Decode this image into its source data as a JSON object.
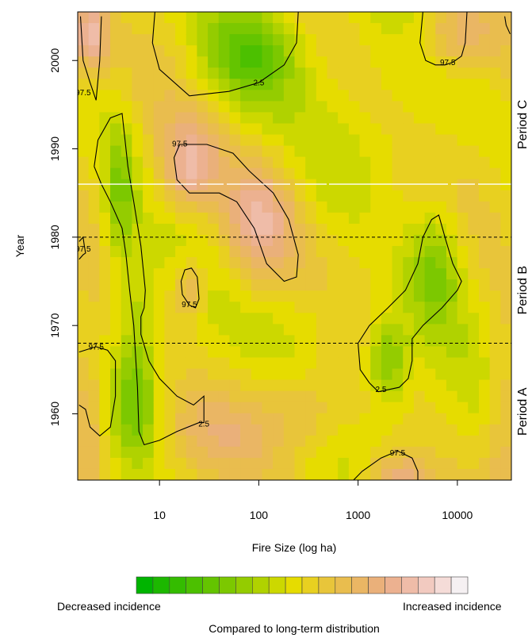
{
  "chart_data": {
    "type": "heatmap",
    "xlabel": "Fire Size (log ha)",
    "ylabel": "Year",
    "x_scale": "log",
    "x_range": [
      1.5,
      35000
    ],
    "y_range": [
      1952.5,
      2005.5
    ],
    "x_ticks": [
      {
        "value": 10,
        "label": "10"
      },
      {
        "value": 100,
        "label": "100"
      },
      {
        "value": 1000,
        "label": "1000"
      },
      {
        "value": 10000,
        "label": "10000"
      }
    ],
    "y_ticks": [
      {
        "value": 1960,
        "label": "1960"
      },
      {
        "value": 1970,
        "label": "1970"
      },
      {
        "value": 1980,
        "label": "1980"
      },
      {
        "value": 1990,
        "label": "1990"
      },
      {
        "value": 2000,
        "label": "2000"
      }
    ],
    "period_boundaries": [
      1968,
      1980
    ],
    "white_line_year": 1986,
    "periods": [
      {
        "label": "Period A",
        "from": 1952.5,
        "to": 1968
      },
      {
        "label": "Period B",
        "from": 1968,
        "to": 1980
      },
      {
        "label": "Period C",
        "from": 1980,
        "to": 2005.5
      }
    ],
    "contour_levels": [
      "2.5",
      "97.5"
    ],
    "contour_labels": [
      {
        "text": "2.5",
        "x": 100,
        "y": 1997.5
      },
      {
        "text": "97.5",
        "x": 1.7,
        "y": 1996.4
      },
      {
        "text": "97.5",
        "x": 16,
        "y": 1990.6
      },
      {
        "text": "97.5",
        "x": 1.7,
        "y": 1978.7
      },
      {
        "text": "97.5",
        "x": 20,
        "y": 1972.4
      },
      {
        "text": "97.5",
        "x": 2.3,
        "y": 1967.6
      },
      {
        "text": "2.5",
        "x": 28,
        "y": 1958.9
      },
      {
        "text": "2.5",
        "x": 1700,
        "y": 1962.8
      },
      {
        "text": "97.5",
        "x": 2500,
        "y": 1955.6
      },
      {
        "text": "97.5",
        "x": 8000,
        "y": 1999.8
      }
    ],
    "hotspots": [
      {
        "x": 2.0,
        "y": 2003,
        "sx": 0.12,
        "sy": 3,
        "v": 0.85
      },
      {
        "x": 1.8,
        "y": 1960,
        "sx": 0.15,
        "sy": 6,
        "v": 0.72
      },
      {
        "x": 20,
        "y": 1988,
        "sx": 0.2,
        "sy": 3.5,
        "v": 0.78
      },
      {
        "x": 100,
        "y": 1982,
        "sx": 0.28,
        "sy": 5,
        "v": 0.8
      },
      {
        "x": 20,
        "y": 1974,
        "sx": 0.12,
        "sy": 2.5,
        "v": 0.7
      },
      {
        "x": 2500,
        "y": 1952,
        "sx": 0.25,
        "sy": 2.5,
        "v": 0.8
      },
      {
        "x": 10000,
        "y": 2003,
        "sx": 0.3,
        "sy": 3,
        "v": 0.72
      },
      {
        "x": 40,
        "y": 1958,
        "sx": 0.4,
        "sy": 3,
        "v": 0.62
      },
      {
        "x": 300,
        "y": 1960,
        "sx": 0.3,
        "sy": 3,
        "v": 0.6
      },
      {
        "x": 80,
        "y": 2001,
        "sx": 0.35,
        "sy": 4,
        "v": 0.2
      },
      {
        "x": 4,
        "y": 1985,
        "sx": 0.12,
        "sy": 6,
        "v": 0.28
      },
      {
        "x": 6,
        "y": 1962,
        "sx": 0.15,
        "sy": 5,
        "v": 0.3
      },
      {
        "x": 2000,
        "y": 1966,
        "sx": 0.15,
        "sy": 3.5,
        "v": 0.25
      },
      {
        "x": 6000,
        "y": 1977,
        "sx": 0.2,
        "sy": 5,
        "v": 0.28
      },
      {
        "x": 6,
        "y": 1972,
        "sx": 0.1,
        "sy": 4,
        "v": 0.4
      },
      {
        "x": 300,
        "y": 1970,
        "sx": 0.4,
        "sy": 4,
        "v": 0.42
      },
      {
        "x": 30000,
        "y": 1960,
        "sx": 0.15,
        "sy": 8,
        "v": 0.65
      },
      {
        "x": 3000,
        "y": 1990,
        "sx": 0.4,
        "sy": 4,
        "v": 0.45
      }
    ],
    "contours": [
      {
        "level": "97.5",
        "points": [
          [
            1.6,
            2005
          ],
          [
            1.7,
            2000
          ],
          [
            2.0,
            1997.5
          ],
          [
            2.3,
            1995.5
          ],
          [
            2.5,
            2000
          ],
          [
            2.6,
            2005
          ]
        ]
      },
      {
        "level": "2.5",
        "points": [
          [
            9,
            2005.5
          ],
          [
            8.5,
            2002
          ],
          [
            10,
            1999
          ],
          [
            20,
            1996
          ],
          [
            50,
            1996.5
          ],
          [
            100,
            1997.5
          ],
          [
            180,
            1999.5
          ],
          [
            240,
            2002
          ],
          [
            250,
            2005.5
          ]
        ]
      },
      {
        "level": "2.5",
        "points": [
          [
            2.2,
            1988
          ],
          [
            2.4,
            1991
          ],
          [
            3.2,
            1993.5
          ],
          [
            4.2,
            1994
          ],
          [
            4.5,
            1991
          ],
          [
            4.8,
            1988
          ],
          [
            5.5,
            1984
          ],
          [
            6.5,
            1979
          ],
          [
            7.2,
            1974
          ],
          [
            7.0,
            1972
          ],
          [
            6.5,
            1971
          ],
          [
            6.5,
            1969
          ],
          [
            7.8,
            1966
          ],
          [
            10,
            1964
          ],
          [
            15,
            1962
          ],
          [
            22,
            1961
          ],
          [
            28,
            1962
          ],
          [
            28,
            1959
          ],
          [
            25,
            1959
          ],
          [
            15,
            1958
          ],
          [
            10,
            1957
          ],
          [
            7,
            1956.5
          ],
          [
            6.2,
            1958
          ],
          [
            6.0,
            1963
          ],
          [
            5.5,
            1970
          ],
          [
            5.0,
            1974
          ],
          [
            4.6,
            1978
          ],
          [
            4.2,
            1981
          ],
          [
            3.2,
            1984
          ],
          [
            2.6,
            1986
          ],
          [
            2.2,
            1988
          ]
        ]
      },
      {
        "level": "97.5",
        "points": [
          [
            16,
            1990.5
          ],
          [
            30,
            1990.5
          ],
          [
            55,
            1989.5
          ],
          [
            80,
            1987.5
          ],
          [
            140,
            1985
          ],
          [
            200,
            1982
          ],
          [
            250,
            1978
          ],
          [
            240,
            1975.5
          ],
          [
            180,
            1975
          ],
          [
            120,
            1977
          ],
          [
            90,
            1981
          ],
          [
            60,
            1984
          ],
          [
            40,
            1985
          ],
          [
            20,
            1985
          ],
          [
            15,
            1986.5
          ],
          [
            14,
            1989
          ],
          [
            16,
            1990.5
          ]
        ]
      },
      {
        "level": "97.5",
        "points": [
          [
            20,
            1972.3
          ],
          [
            17,
            1973.5
          ],
          [
            16.5,
            1975
          ],
          [
            18,
            1976.3
          ],
          [
            21,
            1976.5
          ],
          [
            24,
            1975.5
          ],
          [
            25,
            1973
          ],
          [
            23,
            1972
          ],
          [
            20,
            1972.3
          ]
        ]
      },
      {
        "level": "97.5",
        "points": [
          [
            1.55,
            1979.5
          ],
          [
            1.7,
            1980
          ],
          [
            1.75,
            1979
          ],
          [
            1.8,
            1978.2
          ],
          [
            1.7,
            1978
          ],
          [
            1.55,
            1977.5
          ]
        ]
      },
      {
        "level": "97.5",
        "points": [
          [
            1.55,
            1967
          ],
          [
            2.3,
            1967.6
          ],
          [
            3.0,
            1967.2
          ],
          [
            3.6,
            1966
          ],
          [
            3.6,
            1962
          ],
          [
            3.2,
            1958.5
          ],
          [
            2.5,
            1957.5
          ],
          [
            2.0,
            1958.5
          ],
          [
            1.8,
            1960.5
          ],
          [
            1.55,
            1961
          ]
        ]
      },
      {
        "level": "2.5",
        "points": [
          [
            1600,
            1962.5
          ],
          [
            1300,
            1963.5
          ],
          [
            1050,
            1965
          ],
          [
            1000,
            1968
          ],
          [
            1300,
            1970
          ],
          [
            2000,
            1972
          ],
          [
            3000,
            1974
          ],
          [
            4000,
            1977
          ],
          [
            4500,
            1980
          ],
          [
            5500,
            1982
          ],
          [
            6500,
            1982.5
          ],
          [
            7500,
            1980
          ],
          [
            9000,
            1977
          ],
          [
            11000,
            1975
          ],
          [
            10000,
            1974
          ],
          [
            7000,
            1972
          ],
          [
            4500,
            1970
          ],
          [
            3500,
            1968.5
          ],
          [
            3500,
            1966
          ],
          [
            3200,
            1964
          ],
          [
            2600,
            1963
          ],
          [
            1600,
            1962.5
          ]
        ]
      },
      {
        "level": "97.5",
        "points": [
          [
            900,
            1952.5
          ],
          [
            1100,
            1953.5
          ],
          [
            1700,
            1955
          ],
          [
            2500,
            1955.8
          ],
          [
            3500,
            1955
          ],
          [
            4000,
            1953.5
          ],
          [
            4000,
            1952.5
          ]
        ]
      },
      {
        "level": "97.5",
        "points": [
          [
            4500,
            2005.5
          ],
          [
            4200,
            2002
          ],
          [
            4800,
            2000
          ],
          [
            6000,
            1999.5
          ],
          [
            7500,
            1999.5
          ],
          [
            9000,
            1999.8
          ],
          [
            11000,
            2000.5
          ],
          [
            12000,
            2002
          ],
          [
            12500,
            2005.5
          ]
        ]
      },
      {
        "level": "97.5",
        "points": [
          [
            30000,
            2005
          ],
          [
            31000,
            2004
          ],
          [
            34000,
            2003
          ]
        ]
      }
    ],
    "legend": {
      "left_label": "Decreased incidence",
      "right_label": "Increased incidence",
      "caption": "Compared to long-term distribution",
      "colors": [
        "#00b400",
        "#1cb800",
        "#34bc00",
        "#4cc000",
        "#64c400",
        "#7cc800",
        "#94cc00",
        "#b0d200",
        "#ccd800",
        "#e6dc00",
        "#e8d020",
        "#e8c53a",
        "#e9bd4e",
        "#eab664",
        "#eab07a",
        "#ecb190",
        "#efbca8",
        "#f2cac0",
        "#f5dcd8",
        "#f5f0f2"
      ]
    }
  }
}
